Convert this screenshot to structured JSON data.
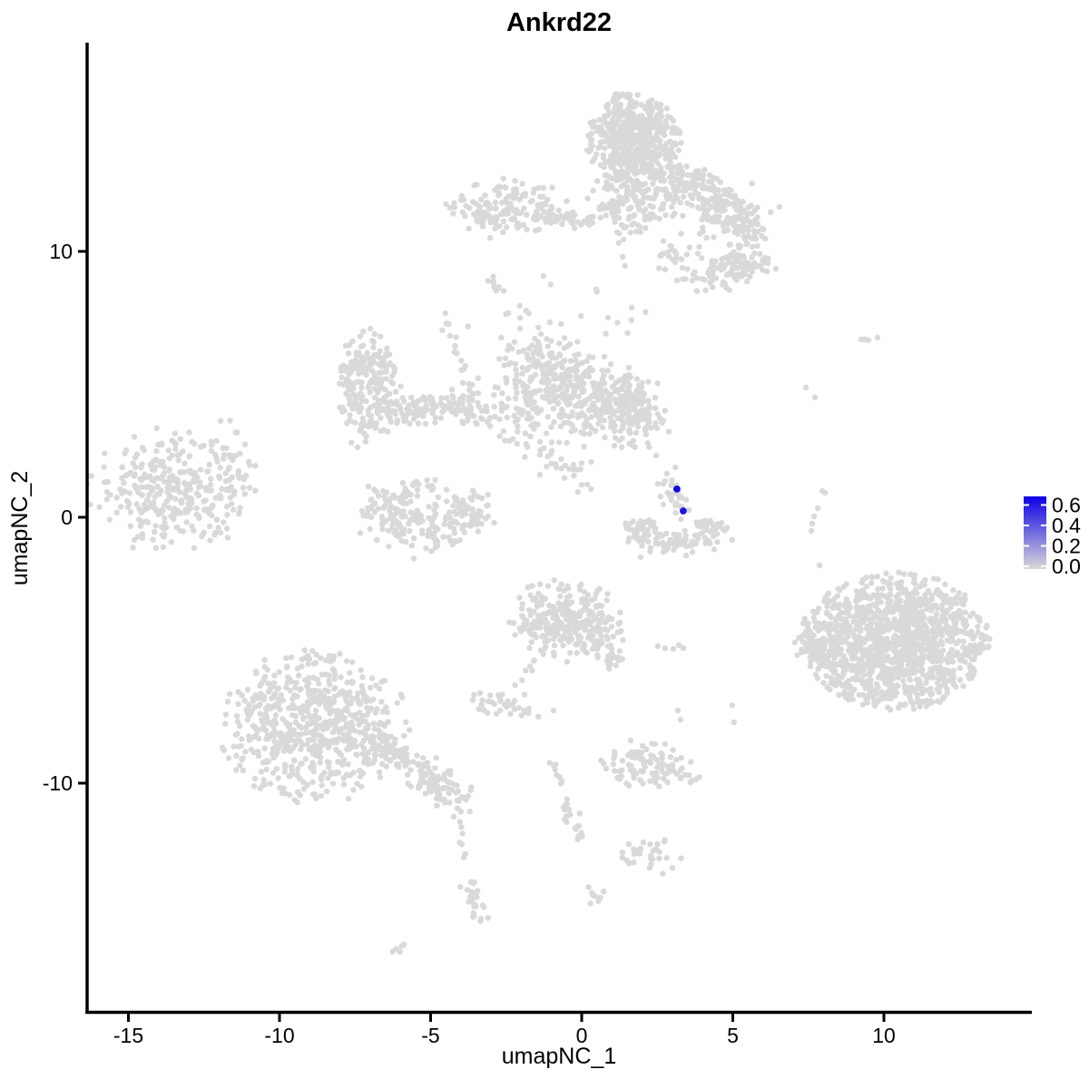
{
  "title": "Ankrd22",
  "axes": {
    "x": {
      "label": "umapNC_1",
      "ticks": [
        -15,
        -10,
        -5,
        0,
        5,
        10
      ]
    },
    "y": {
      "label": "umapNC_2",
      "ticks": [
        10,
        0,
        -10
      ]
    }
  },
  "legend": {
    "labels": [
      "0.6",
      "0.4",
      "0.2",
      "0.0"
    ],
    "values": [
      0.6,
      0.4,
      0.2,
      0.0
    ],
    "low_color": "#D9D9D9",
    "high_color": "#0C00E6"
  },
  "chart_data": {
    "type": "scatter",
    "subtype": "umap-feature-plot",
    "title": "Ankrd22",
    "xlabel": "umapNC_1",
    "ylabel": "umapNC_2",
    "xlim": [
      -16.4,
      14.9
    ],
    "ylim": [
      -18.7,
      17.8
    ],
    "x_ticks": [
      -15,
      -10,
      -5,
      0,
      5,
      10
    ],
    "y_ticks": [
      10,
      0,
      -10
    ],
    "color_scale": {
      "min": 0.0,
      "max": 0.68,
      "low": "#D9D9D9",
      "high": "#0C00E6",
      "legend_breaks": [
        0.6,
        0.4,
        0.2,
        0.0
      ]
    },
    "point_color_default": "#D9D9D9",
    "clusters": [
      {
        "name": "top-main-blob",
        "t": "g",
        "cx": 1.68,
        "cy": 14.3,
        "sx": 0.78,
        "sy": 0.82,
        "n": 520,
        "clip": 2.1
      },
      {
        "name": "top-main-lower",
        "t": "g",
        "cx": 1.77,
        "cy": 12.2,
        "sx": 0.85,
        "sy": 0.8,
        "n": 170,
        "clip": 2.0
      },
      {
        "name": "top-branch-trail",
        "t": "t",
        "x1": 2.9,
        "y1": 12.9,
        "x2": 5.9,
        "y2": 10.9,
        "n": 230,
        "w": 0.42
      },
      {
        "name": "top-branch-scatter",
        "t": "g",
        "cx": 4.6,
        "cy": 9.85,
        "sx": 1.1,
        "sy": 0.7,
        "n": 70,
        "clip": 2.2
      },
      {
        "name": "top-right-clump-a",
        "t": "g",
        "cx": 5.43,
        "cy": 9.6,
        "sx": 0.38,
        "sy": 0.34,
        "n": 45
      },
      {
        "name": "top-right-clump-b",
        "t": "g",
        "cx": 4.4,
        "cy": 9.0,
        "sx": 0.45,
        "sy": 0.3,
        "n": 30
      },
      {
        "name": "top-small-v",
        "t": "g",
        "cx": 2.9,
        "cy": 9.95,
        "sx": 0.3,
        "sy": 0.22,
        "n": 10
      },
      {
        "name": "top-left-cluster",
        "t": "g",
        "cx": -2.5,
        "cy": 11.7,
        "sx": 1.0,
        "sy": 0.55,
        "n": 150,
        "clip": 2.1
      },
      {
        "name": "top-left-tail",
        "t": "t",
        "x1": -1.25,
        "y1": 11.35,
        "x2": 0.55,
        "y2": 11.1,
        "n": 45,
        "w": 0.16
      },
      {
        "name": "top-left-dash",
        "t": "g",
        "cx": -3.5,
        "cy": 11.45,
        "sx": 0.16,
        "sy": 0.07,
        "n": 4
      },
      {
        "name": "upper-mid-vert-trail",
        "t": "t",
        "x1": 0.9,
        "y1": 12.6,
        "x2": 1.35,
        "y2": 10.0,
        "n": 14,
        "w": 0.12
      },
      {
        "name": "upper-mid-scatter",
        "t": "g",
        "cx": 1.2,
        "cy": 8.0,
        "sx": 0.5,
        "sy": 1.2,
        "n": 10
      },
      {
        "name": "left-diag-trail",
        "t": "t",
        "x1": -4.6,
        "y1": 7.6,
        "x2": -3.65,
        "y2": 4.8,
        "n": 18,
        "w": 0.1
      },
      {
        "name": "left-streak",
        "t": "t",
        "x1": -3.1,
        "y1": 9.05,
        "x2": -2.55,
        "y2": 8.45,
        "n": 9,
        "w": 0.1
      },
      {
        "name": "midleft-ring",
        "t": "r",
        "cx": -7.05,
        "cy": 4.9,
        "rx": 0.62,
        "ry": 1.3,
        "j": 0.42,
        "n": 240
      },
      {
        "name": "midleft-band",
        "t": "t",
        "x1": -6.1,
        "y1": 4.0,
        "x2": -3.05,
        "y2": 4.15,
        "n": 130,
        "w": 0.3
      },
      {
        "name": "center-main",
        "t": "g",
        "cx": -1.0,
        "cy": 4.85,
        "sx": 0.95,
        "sy": 1.0,
        "n": 300,
        "clip": 2.2
      },
      {
        "name": "center-right",
        "t": "g",
        "cx": 0.95,
        "cy": 4.3,
        "sx": 0.75,
        "sy": 0.8,
        "n": 150
      },
      {
        "name": "center-right-lobe",
        "t": "g",
        "cx": 1.75,
        "cy": 4.05,
        "sx": 0.55,
        "sy": 0.7,
        "n": 100
      },
      {
        "name": "above-center-sparse",
        "t": "g",
        "cx": -1.5,
        "cy": 7.2,
        "sx": 0.95,
        "sy": 0.95,
        "n": 22
      },
      {
        "name": "below-center-trail",
        "t": "t",
        "x1": -2.5,
        "y1": 3.15,
        "x2": 0.5,
        "y2": 1.3,
        "n": 40,
        "w": 0.3
      },
      {
        "name": "far-left-cluster",
        "t": "g",
        "cx": -13.55,
        "cy": 1.0,
        "sx": 1.3,
        "sy": 1.1,
        "n": 310,
        "clip": 2.2
      },
      {
        "name": "far-left-scatter",
        "t": "g",
        "cx": -11.7,
        "cy": 1.7,
        "sx": 0.55,
        "sy": 0.9,
        "n": 35
      },
      {
        "name": "lower-left-horseshoe",
        "t": "r",
        "cx": -5.15,
        "cy": 0.4,
        "rx": 1.45,
        "ry": 1.05,
        "j": 0.3,
        "n": 210,
        "a0": 150,
        "a1": 390
      },
      {
        "name": "horseshoe-inner",
        "t": "g",
        "cx": -5.5,
        "cy": 0.8,
        "sx": 0.5,
        "sy": 0.45,
        "n": 28
      },
      {
        "name": "center-arc",
        "t": "r",
        "cx": 3.1,
        "cy": -0.05,
        "rx": 1.3,
        "ry": 0.95,
        "j": 0.24,
        "n": 140,
        "a0": 185,
        "a1": 355
      },
      {
        "name": "center-arc-column",
        "t": "t",
        "x1": 2.88,
        "y1": 1.55,
        "x2": 3.2,
        "y2": 0.2,
        "n": 26,
        "w": 0.22
      },
      {
        "name": "right-big-cluster",
        "t": "g",
        "cx": 10.35,
        "cy": -4.65,
        "sx": 1.8,
        "sy": 1.5,
        "n": 1300,
        "clip": 1.75
      },
      {
        "name": "right-big-protrusion",
        "t": "g",
        "cx": 8.1,
        "cy": -4.95,
        "sx": 0.5,
        "sy": 0.45,
        "n": 45
      },
      {
        "name": "bottom-left-big",
        "t": "g",
        "cx": -8.85,
        "cy": -7.85,
        "sx": 1.65,
        "sy": 1.5,
        "n": 640,
        "clip": 1.95
      },
      {
        "name": "bottom-left-tail",
        "t": "t",
        "x1": -6.9,
        "y1": -8.25,
        "x2": -4.5,
        "y2": -10.3,
        "n": 110,
        "w": 0.33
      },
      {
        "name": "bottom-left-tail-end",
        "t": "g",
        "cx": -4.35,
        "cy": -10.45,
        "sx": 0.45,
        "sy": 0.4,
        "n": 40
      },
      {
        "name": "bl-sparse-trail",
        "t": "t",
        "x1": -4.15,
        "y1": -11.35,
        "x2": -3.85,
        "y2": -12.95,
        "n": 7,
        "w": 0.07
      },
      {
        "name": "bl-streak",
        "t": "t",
        "x1": -3.7,
        "y1": -13.75,
        "x2": -3.3,
        "y2": -15.15,
        "n": 26,
        "w": 0.13
      },
      {
        "name": "bl-dash",
        "t": "t",
        "x1": -6.25,
        "y1": -16.3,
        "x2": -5.85,
        "y2": -16.0,
        "n": 6,
        "w": 0.07
      },
      {
        "name": "center-bottom-cluster",
        "t": "g",
        "cx": -0.6,
        "cy": -3.75,
        "sx": 0.95,
        "sy": 0.75,
        "n": 230,
        "clip": 2.0
      },
      {
        "name": "center-bottom-lobe",
        "t": "g",
        "cx": 0.2,
        "cy": -4.45,
        "sx": 0.6,
        "sy": 0.5,
        "n": 70
      },
      {
        "name": "cb-tail",
        "t": "t",
        "x1": 0.85,
        "y1": -4.9,
        "x2": 1.1,
        "y2": -5.55,
        "n": 18,
        "w": 0.16
      },
      {
        "name": "cb-trail-dl",
        "t": "t",
        "x1": -1.25,
        "y1": -4.85,
        "x2": -1.85,
        "y2": -6.1,
        "n": 9,
        "w": 0.08
      },
      {
        "name": "small-left-cluster",
        "t": "g",
        "cx": -2.45,
        "cy": -7.05,
        "sx": 0.6,
        "sy": 0.33,
        "n": 40
      },
      {
        "name": "bottom-center-band",
        "t": "g",
        "cx": 2.3,
        "cy": -9.4,
        "sx": 0.8,
        "sy": 0.38,
        "n": 95
      },
      {
        "name": "bc-dots-above",
        "t": "g",
        "cx": 1.8,
        "cy": -8.8,
        "sx": 0.3,
        "sy": 0.25,
        "n": 6
      },
      {
        "name": "bc-trail-a",
        "t": "t",
        "x1": -1.0,
        "y1": -9.2,
        "x2": -0.7,
        "y2": -10.0,
        "n": 8,
        "w": 0.07
      },
      {
        "name": "bc-trail-b",
        "t": "t",
        "x1": -0.5,
        "y1": -10.6,
        "x2": -0.1,
        "y2": -12.15,
        "n": 22,
        "w": 0.14
      },
      {
        "name": "rb-small-cluster",
        "t": "g",
        "cx": 2.15,
        "cy": -12.65,
        "sx": 0.5,
        "sy": 0.35,
        "n": 30
      },
      {
        "name": "rb-small-blob",
        "t": "g",
        "cx": 0.5,
        "cy": -14.15,
        "sx": 0.18,
        "sy": 0.2,
        "n": 8
      }
    ],
    "extra_points": [
      [
        9.79,
        6.76
      ],
      [
        9.25,
        6.69
      ],
      [
        9.37,
        6.69
      ],
      [
        9.49,
        6.66
      ],
      [
        5.47,
        8.87
      ],
      [
        7.42,
        4.88
      ],
      [
        7.72,
        4.51
      ],
      [
        7.96,
        0.99
      ],
      [
        8.05,
        0.92
      ],
      [
        7.81,
        0.34
      ],
      [
        7.69,
        0.03
      ],
      [
        7.63,
        -0.24
      ],
      [
        7.6,
        -0.51
      ],
      [
        7.87,
        -1.81
      ],
      [
        2.46,
        2.32
      ],
      [
        2.82,
        1.64
      ],
      [
        2.52,
        1.26
      ],
      [
        2.61,
        0.78
      ],
      [
        2.7,
        0.48
      ],
      [
        1.56,
        -12.29
      ],
      [
        3.27,
        -7.61
      ],
      [
        3.18,
        -7.27
      ],
      [
        4.98,
        -7.07
      ],
      [
        5.04,
        -7.71
      ],
      [
        -0.93,
        -7.27
      ],
      [
        2.43,
        -8.53
      ],
      [
        2.52,
        -4.85
      ],
      [
        2.76,
        -4.92
      ],
      [
        3.03,
        -4.95
      ],
      [
        3.21,
        -4.81
      ],
      [
        3.36,
        -4.92
      ],
      [
        -3.03,
        10.51
      ],
      [
        -2.43,
        7.68
      ],
      [
        -2.04,
        7.1
      ],
      [
        -3.63,
        4.4
      ],
      [
        -3.95,
        3.6
      ]
    ],
    "highlighted_cells": [
      {
        "x": 3.15,
        "y": 1.06,
        "value": 0.66
      },
      {
        "x": 3.36,
        "y": 0.24,
        "value": 0.62
      }
    ]
  }
}
